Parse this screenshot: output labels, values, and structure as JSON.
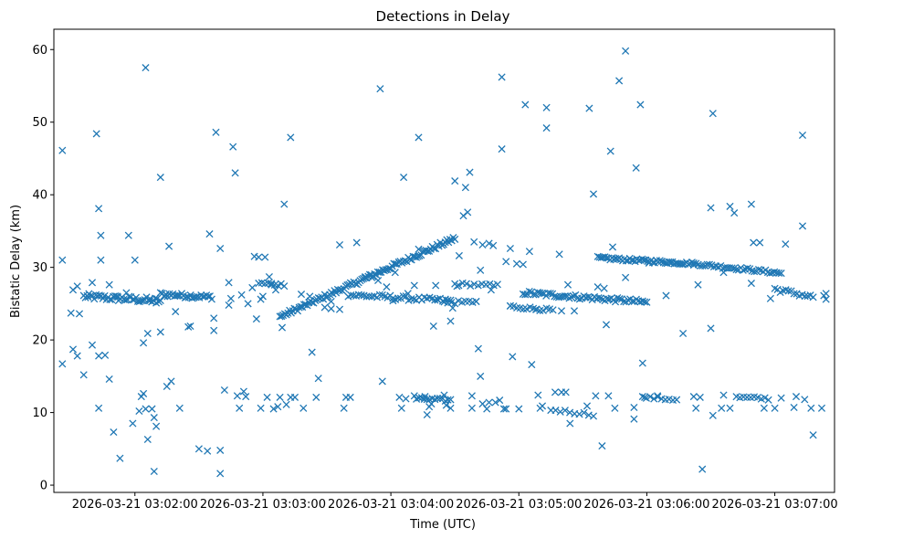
{
  "chart_data": {
    "type": "scatter",
    "title": "Detections in Delay",
    "xlabel": "Time (UTC)",
    "ylabel": "Bistatic Delay (km)",
    "marker": "x",
    "color": "#1f77b4",
    "grid": false,
    "x_unit": "seconds after 2026-03-21 03:02:00 UTC",
    "xlim": [
      -38,
      328
    ],
    "ylim": [
      -1.0,
      62.8
    ],
    "xticks": [
      0,
      60,
      120,
      180,
      240,
      300
    ],
    "xtick_labels": [
      "2026-03-21 03:02:00",
      "2026-03-21 03:03:00",
      "2026-03-21 03:04:00",
      "2026-03-21 03:05:00",
      "2026-03-21 03:06:00",
      "2026-03-21 03:07:00"
    ],
    "yticks": [
      0,
      10,
      20,
      30,
      40,
      50,
      60
    ],
    "ytick_labels": [
      "0",
      "10",
      "20",
      "30",
      "40",
      "50",
      "60"
    ],
    "tracks": [
      {
        "name": "track-a",
        "x_start": -24,
        "x_end": 12,
        "y_start": 26.0,
        "y_end": 25.4,
        "count": 45,
        "jitter": 0.4
      },
      {
        "name": "track-b",
        "x_start": 12,
        "x_end": 36,
        "y_start": 26.3,
        "y_end": 25.9,
        "count": 30,
        "jitter": 0.3
      },
      {
        "name": "track-c",
        "x_start": 68,
        "x_end": 150,
        "y_start": 23.2,
        "y_end": 34.0,
        "count": 110,
        "jitter": 0.3
      },
      {
        "name": "track-d",
        "x_start": 58,
        "x_end": 70,
        "y_start": 27.8,
        "y_end": 27.6,
        "count": 9,
        "jitter": 0.2
      },
      {
        "name": "track-e",
        "x_start": 100,
        "x_end": 148,
        "y_start": 26.2,
        "y_end": 25.4,
        "count": 40,
        "jitter": 0.3
      },
      {
        "name": "track-f",
        "x_start": 150,
        "x_end": 170,
        "y_start": 27.7,
        "y_end": 27.5,
        "count": 12,
        "jitter": 0.2
      },
      {
        "name": "track-g",
        "x_start": 182,
        "x_end": 240,
        "y_start": 26.5,
        "y_end": 25.2,
        "count": 60,
        "jitter": 0.3
      },
      {
        "name": "track-h",
        "x_start": 176,
        "x_end": 196,
        "y_start": 24.6,
        "y_end": 24.1,
        "count": 14,
        "jitter": 0.2
      },
      {
        "name": "track-i",
        "x_start": 217,
        "x_end": 262,
        "y_start": 31.3,
        "y_end": 30.5,
        "count": 55,
        "jitter": 0.2
      },
      {
        "name": "track-j",
        "x_start": 262,
        "x_end": 303,
        "y_start": 30.5,
        "y_end": 29.2,
        "count": 40,
        "jitter": 0.2
      },
      {
        "name": "track-k",
        "x_start": 300,
        "x_end": 318,
        "y_start": 27.0,
        "y_end": 25.9,
        "count": 15,
        "jitter": 0.3
      },
      {
        "name": "track-l",
        "x_start": 132,
        "x_end": 148,
        "y_start": 11.9,
        "y_end": 11.7,
        "count": 14,
        "jitter": 0.2
      },
      {
        "name": "track-m",
        "x_start": 195,
        "x_end": 215,
        "y_start": 10.4,
        "y_end": 9.7,
        "count": 10,
        "jitter": 0.2
      },
      {
        "name": "track-n",
        "x_start": 238,
        "x_end": 254,
        "y_start": 12.1,
        "y_end": 11.8,
        "count": 10,
        "jitter": 0.2
      },
      {
        "name": "track-o",
        "x_start": 282,
        "x_end": 297,
        "y_start": 12.1,
        "y_end": 11.9,
        "count": 10,
        "jitter": 0.2
      },
      {
        "name": "track-p",
        "x_start": 145,
        "x_end": 160,
        "y_start": 25.2,
        "y_end": 25.2,
        "count": 10,
        "jitter": 0.2
      }
    ],
    "points": [
      [
        -34,
        46.1
      ],
      [
        -34,
        31.0
      ],
      [
        -34,
        16.7
      ],
      [
        -30,
        23.7
      ],
      [
        -29,
        26.9
      ],
      [
        -29,
        18.7
      ],
      [
        -27,
        27.4
      ],
      [
        -27,
        17.8
      ],
      [
        -26,
        23.6
      ],
      [
        -24,
        15.2
      ],
      [
        -20,
        27.9
      ],
      [
        -20,
        19.3
      ],
      [
        -18,
        48.4
      ],
      [
        -17,
        38.1
      ],
      [
        -17,
        10.6
      ],
      [
        -16,
        34.4
      ],
      [
        -16,
        31.0
      ],
      [
        -17,
        17.8
      ],
      [
        -14,
        17.9
      ],
      [
        -12,
        14.6
      ],
      [
        -10,
        7.3
      ],
      [
        -7,
        3.7
      ],
      [
        -3,
        34.4
      ],
      [
        0,
        31.0
      ],
      [
        -1,
        8.5
      ],
      [
        2,
        10.2
      ],
      [
        3,
        12.2
      ],
      [
        4,
        12.6
      ],
      [
        5,
        10.5
      ],
      [
        6,
        6.3
      ],
      [
        6,
        20.9
      ],
      [
        5,
        57.5
      ],
      [
        8,
        10.5
      ],
      [
        9,
        1.9
      ],
      [
        10,
        8.1
      ],
      [
        9,
        9.3
      ],
      [
        12,
        21.1
      ],
      [
        12,
        42.4
      ],
      [
        15,
        13.6
      ],
      [
        17,
        14.3
      ],
      [
        19,
        23.9
      ],
      [
        21,
        10.6
      ],
      [
        16,
        32.9
      ],
      [
        26,
        21.9
      ],
      [
        25,
        21.8
      ],
      [
        30,
        5.0
      ],
      [
        34,
        4.7
      ],
      [
        35,
        34.6
      ],
      [
        38,
        48.6
      ],
      [
        37,
        21.3
      ],
      [
        37,
        23.0
      ],
      [
        40,
        32.6
      ],
      [
        40,
        4.8
      ],
      [
        40,
        1.6
      ],
      [
        42,
        13.1
      ],
      [
        45,
        25.7
      ],
      [
        46,
        46.6
      ],
      [
        47,
        43.0
      ],
      [
        48,
        12.3
      ],
      [
        49,
        10.6
      ],
      [
        52,
        12.2
      ],
      [
        51,
        12.9
      ],
      [
        56,
        31.5
      ],
      [
        57,
        22.9
      ],
      [
        58,
        31.4
      ],
      [
        59,
        25.6
      ],
      [
        59,
        10.6
      ],
      [
        62,
        12.1
      ],
      [
        61,
        31.4
      ],
      [
        63,
        28.7
      ],
      [
        65,
        10.5
      ],
      [
        67,
        10.8
      ],
      [
        68,
        12.1
      ],
      [
        69,
        21.7
      ],
      [
        70,
        38.7
      ],
      [
        71,
        11.1
      ],
      [
        73,
        47.9
      ],
      [
        73,
        12.1
      ],
      [
        75,
        12.1
      ],
      [
        79,
        10.6
      ],
      [
        83,
        18.3
      ],
      [
        85,
        12.1
      ],
      [
        86,
        14.7
      ],
      [
        89,
        24.5
      ],
      [
        92,
        24.3
      ],
      [
        96,
        24.2
      ],
      [
        96,
        33.1
      ],
      [
        98,
        10.6
      ],
      [
        99,
        12.1
      ],
      [
        101,
        12.1
      ],
      [
        104,
        33.4
      ],
      [
        108,
        28.7
      ],
      [
        111,
        28.6
      ],
      [
        115,
        54.6
      ],
      [
        116,
        14.3
      ],
      [
        121,
        25.4
      ],
      [
        122,
        29.3
      ],
      [
        124,
        12.1
      ],
      [
        125,
        10.6
      ],
      [
        126,
        42.4
      ],
      [
        127,
        11.9
      ],
      [
        128,
        26.4
      ],
      [
        131,
        12.3
      ],
      [
        133,
        47.9
      ],
      [
        133,
        32.5
      ],
      [
        131,
        27.5
      ],
      [
        136,
        12.2
      ],
      [
        137,
        9.7
      ],
      [
        138,
        10.8
      ],
      [
        139,
        11.2
      ],
      [
        140,
        21.9
      ],
      [
        142,
        25.5
      ],
      [
        145,
        12.4
      ],
      [
        146,
        11.0
      ],
      [
        148,
        22.6
      ],
      [
        148,
        10.6
      ],
      [
        149,
        24.4
      ],
      [
        150,
        41.9
      ],
      [
        152,
        31.6
      ],
      [
        154,
        37.1
      ],
      [
        155,
        41.0
      ],
      [
        156,
        37.6
      ],
      [
        157,
        43.1
      ],
      [
        158,
        12.3
      ],
      [
        158,
        10.6
      ],
      [
        160,
        25.3
      ],
      [
        161,
        18.8
      ],
      [
        162,
        29.6
      ],
      [
        162,
        15.0
      ],
      [
        163,
        11.2
      ],
      [
        165,
        10.5
      ],
      [
        166,
        11.4
      ],
      [
        167,
        26.9
      ],
      [
        169,
        11.4
      ],
      [
        171,
        11.7
      ],
      [
        172,
        56.2
      ],
      [
        172,
        46.3
      ],
      [
        173,
        10.5
      ],
      [
        174,
        10.5
      ],
      [
        174,
        30.8
      ],
      [
        176,
        32.6
      ],
      [
        177,
        17.7
      ],
      [
        179,
        30.5
      ],
      [
        180,
        10.5
      ],
      [
        183,
        52.4
      ],
      [
        182,
        30.4
      ],
      [
        185,
        32.2
      ],
      [
        186,
        16.6
      ],
      [
        189,
        12.4
      ],
      [
        190,
        10.6
      ],
      [
        191,
        10.9
      ],
      [
        193,
        52.0
      ],
      [
        193,
        49.2
      ],
      [
        197,
        12.8
      ],
      [
        199,
        31.8
      ],
      [
        200,
        12.8
      ],
      [
        202,
        12.8
      ],
      [
        203,
        27.6
      ],
      [
        204,
        8.5
      ],
      [
        206,
        24.0
      ],
      [
        212,
        10.9
      ],
      [
        213,
        51.9
      ],
      [
        215,
        40.1
      ],
      [
        216,
        12.3
      ],
      [
        217,
        27.3
      ],
      [
        219,
        5.4
      ],
      [
        220,
        27.1
      ],
      [
        221,
        22.1
      ],
      [
        222,
        12.3
      ],
      [
        223,
        46.0
      ],
      [
        224,
        32.8
      ],
      [
        225,
        10.6
      ],
      [
        227,
        55.7
      ],
      [
        230,
        59.8
      ],
      [
        230,
        28.6
      ],
      [
        234,
        10.7
      ],
      [
        235,
        43.7
      ],
      [
        234,
        9.1
      ],
      [
        237,
        52.4
      ],
      [
        238,
        16.8
      ],
      [
        239,
        12.1
      ],
      [
        241,
        30.6
      ],
      [
        245,
        12.3
      ],
      [
        249,
        26.1
      ],
      [
        257,
        20.9
      ],
      [
        262,
        12.2
      ],
      [
        263,
        10.6
      ],
      [
        264,
        27.6
      ],
      [
        265,
        12.1
      ],
      [
        266,
        2.2
      ],
      [
        270,
        21.6
      ],
      [
        270,
        38.2
      ],
      [
        271,
        51.2
      ],
      [
        271,
        9.6
      ],
      [
        275,
        10.6
      ],
      [
        276,
        12.4
      ],
      [
        276,
        29.3
      ],
      [
        279,
        10.6
      ],
      [
        279,
        38.4
      ],
      [
        281,
        37.5
      ],
      [
        289,
        38.7
      ],
      [
        289,
        27.8
      ],
      [
        290,
        33.4
      ],
      [
        293,
        33.4
      ],
      [
        295,
        10.6
      ],
      [
        298,
        25.7
      ],
      [
        305,
        33.2
      ],
      [
        309,
        10.7
      ],
      [
        310,
        12.2
      ],
      [
        313,
        48.2
      ],
      [
        313,
        35.7
      ],
      [
        314,
        11.8
      ],
      [
        317,
        10.6
      ],
      [
        318,
        6.9
      ],
      [
        322,
        10.6
      ],
      [
        324,
        26.4
      ],
      [
        324,
        25.6
      ],
      [
        323,
        26.1
      ],
      [
        300,
        10.6
      ],
      [
        303,
        12.0
      ],
      [
        -22,
        25.9
      ],
      [
        -12,
        27.6
      ],
      [
        -8,
        25.9
      ],
      [
        -4,
        26.5
      ],
      [
        4,
        19.6
      ],
      [
        7,
        25.4
      ],
      [
        10,
        25.1
      ],
      [
        14,
        26.0
      ],
      [
        44,
        27.9
      ],
      [
        44,
        24.8
      ],
      [
        50,
        26.2
      ],
      [
        53,
        25.0
      ],
      [
        55,
        27.2
      ],
      [
        60,
        26.0
      ],
      [
        64,
        27.6
      ],
      [
        66,
        26.9
      ],
      [
        78,
        26.3
      ],
      [
        82,
        26.0
      ],
      [
        92,
        25.3
      ],
      [
        114,
        28.2
      ],
      [
        118,
        27.3
      ],
      [
        141,
        27.5
      ],
      [
        151,
        27.4
      ],
      [
        159,
        33.5
      ],
      [
        163,
        33.1
      ],
      [
        166,
        33.3
      ],
      [
        168,
        33.0
      ],
      [
        176,
        24.7
      ],
      [
        188,
        24.2
      ],
      [
        200,
        24.0
      ]
    ]
  }
}
